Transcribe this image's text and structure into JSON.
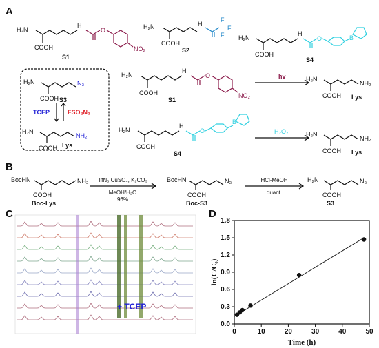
{
  "panels": {
    "a": "A",
    "b": "B",
    "c": "C",
    "d": "D"
  },
  "colors": {
    "bond": "#111111",
    "carbamate": "#8b1a4a",
    "tfa": "#1f86c8",
    "boronate": "#2fd0e0",
    "blue_text": "#1f1fd6",
    "red_text": "#e0222a",
    "nmr_line": "#8a2b4a",
    "chart_line": "#222222"
  },
  "compounds": {
    "s1": "S1",
    "s2": "S2",
    "s4": "S4",
    "s3": "S3",
    "lys": "Lys",
    "boc_lys": "Boc-Lys",
    "boc_s3": "Boc-S3"
  },
  "atoms": {
    "h2n": "H₂N",
    "cooh": "COOH",
    "nh": "H",
    "o": "O",
    "no2": "NO₂",
    "f": "F",
    "n3": "N₃",
    "nh2": "NH₂",
    "bochn": "BocHN",
    "b": "B"
  },
  "reagents": {
    "tcep": "TCEP",
    "fso2n3": "FSO₂N₃",
    "hv": "hv",
    "h2o2": "H₂O₂",
    "b_step1_top": "TfN₃,CuSO₄, K₂CO₃",
    "b_step1_mid": "MeOH/H₂O",
    "b_step1_yield": "96%",
    "b_step2_top": "HCl-MeOH",
    "b_step2_bottom": "quant."
  },
  "nmr": {
    "annotation": "+ TCEP"
  },
  "chart_data": {
    "type": "scatter",
    "x": [
      1,
      2,
      3,
      6,
      24,
      48
    ],
    "y": [
      0.16,
      0.2,
      0.24,
      0.32,
      0.85,
      1.47
    ],
    "fit_line": {
      "x": [
        0,
        48
      ],
      "y": [
        0.13,
        1.5
      ]
    },
    "xlabel": "Time (h)",
    "ylabel": "ln(C/C₀)",
    "xlim": [
      0,
      50
    ],
    "ylim": [
      0,
      1.8
    ],
    "xticks": [
      "0",
      "10",
      "20",
      "30",
      "40",
      "50"
    ],
    "yticks": [
      "0.0",
      "0.3",
      "0.6",
      "0.9",
      "1.2",
      "1.5",
      "1.8"
    ]
  }
}
